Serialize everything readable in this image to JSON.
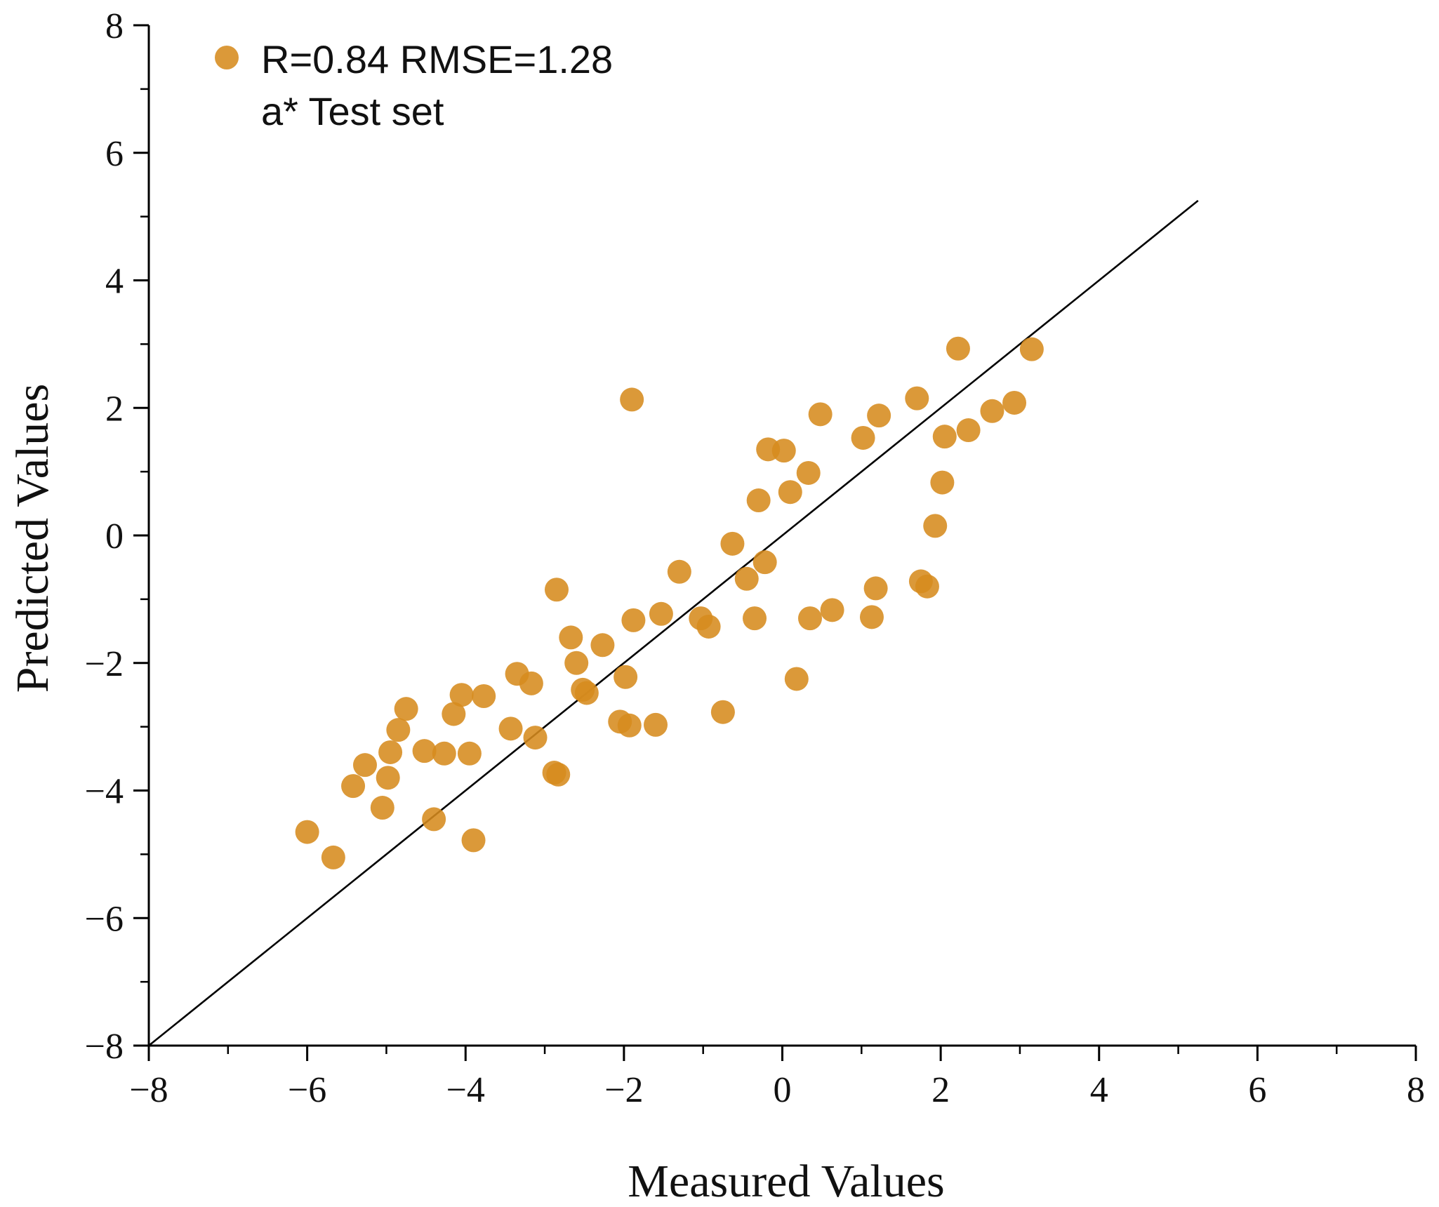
{
  "chart_data": {
    "type": "scatter",
    "title": "",
    "xlabel": "Measured Values",
    "ylabel": "Predicted Values",
    "xlim": [
      -8,
      8
    ],
    "ylim": [
      -8,
      8
    ],
    "xticks": [
      -8,
      -6,
      -4,
      -2,
      0,
      2,
      4,
      6,
      8
    ],
    "yticks": [
      -8,
      -6,
      -4,
      -2,
      0,
      2,
      4,
      6,
      8
    ],
    "xtick_labels": [
      "−8",
      "−6",
      "−4",
      "−2",
      "0",
      "2",
      "4",
      "6",
      "8"
    ],
    "ytick_labels": [
      "−8",
      "−6",
      "−4",
      "−2",
      "0",
      "2",
      "4",
      "6",
      "8"
    ],
    "minor_step": 1,
    "grid": false,
    "reference_line": {
      "from": [
        -8,
        -8
      ],
      "to": [
        5.25,
        5.25
      ]
    },
    "legend": {
      "position": "top-left",
      "line1": "R=0.84 RMSE=1.28",
      "line2": "a* Test set"
    },
    "colors": {
      "point": "#D68B1E",
      "line": "#000000",
      "axis": "#000000"
    },
    "series": [
      {
        "name": "a* Test set",
        "points": [
          [
            -6.0,
            -4.65
          ],
          [
            -5.67,
            -5.05
          ],
          [
            -5.42,
            -3.93
          ],
          [
            -5.27,
            -3.6
          ],
          [
            -5.05,
            -4.27
          ],
          [
            -4.98,
            -3.8
          ],
          [
            -4.95,
            -3.4
          ],
          [
            -4.85,
            -3.05
          ],
          [
            -4.75,
            -2.72
          ],
          [
            -4.52,
            -3.38
          ],
          [
            -4.4,
            -4.45
          ],
          [
            -4.27,
            -3.42
          ],
          [
            -4.15,
            -2.8
          ],
          [
            -4.05,
            -2.5
          ],
          [
            -3.95,
            -3.42
          ],
          [
            -3.9,
            -4.78
          ],
          [
            -3.77,
            -2.52
          ],
          [
            -3.43,
            -3.03
          ],
          [
            -3.35,
            -2.17
          ],
          [
            -3.17,
            -2.32
          ],
          [
            -3.12,
            -3.17
          ],
          [
            -2.88,
            -3.72
          ],
          [
            -2.83,
            -3.75
          ],
          [
            -2.85,
            -0.85
          ],
          [
            -2.67,
            -1.6
          ],
          [
            -2.6,
            -2.0
          ],
          [
            -2.52,
            -2.42
          ],
          [
            -2.47,
            -2.47
          ],
          [
            -2.27,
            -1.72
          ],
          [
            -2.05,
            -2.92
          ],
          [
            -1.98,
            -2.22
          ],
          [
            -1.93,
            -2.98
          ],
          [
            -1.9,
            2.13
          ],
          [
            -1.88,
            -1.33
          ],
          [
            -1.6,
            -2.97
          ],
          [
            -1.53,
            -1.23
          ],
          [
            -1.3,
            -0.57
          ],
          [
            -1.03,
            -1.3
          ],
          [
            -0.93,
            -1.43
          ],
          [
            -0.75,
            -2.77
          ],
          [
            -0.63,
            -0.13
          ],
          [
            -0.45,
            -0.68
          ],
          [
            -0.35,
            -1.3
          ],
          [
            -0.3,
            0.55
          ],
          [
            -0.22,
            -0.42
          ],
          [
            -0.18,
            1.35
          ],
          [
            0.02,
            1.33
          ],
          [
            0.1,
            0.68
          ],
          [
            0.18,
            -2.25
          ],
          [
            0.33,
            0.98
          ],
          [
            0.35,
            -1.3
          ],
          [
            0.48,
            1.9
          ],
          [
            0.63,
            -1.17
          ],
          [
            1.02,
            1.53
          ],
          [
            1.13,
            -1.28
          ],
          [
            1.18,
            -0.83
          ],
          [
            1.22,
            1.88
          ],
          [
            1.7,
            2.15
          ],
          [
            1.75,
            -0.72
          ],
          [
            1.83,
            -0.8
          ],
          [
            1.93,
            0.15
          ],
          [
            2.02,
            0.83
          ],
          [
            2.05,
            1.55
          ],
          [
            2.22,
            2.93
          ],
          [
            2.35,
            1.65
          ],
          [
            2.65,
            1.95
          ],
          [
            2.93,
            2.08
          ],
          [
            3.15,
            2.92
          ]
        ]
      }
    ]
  }
}
